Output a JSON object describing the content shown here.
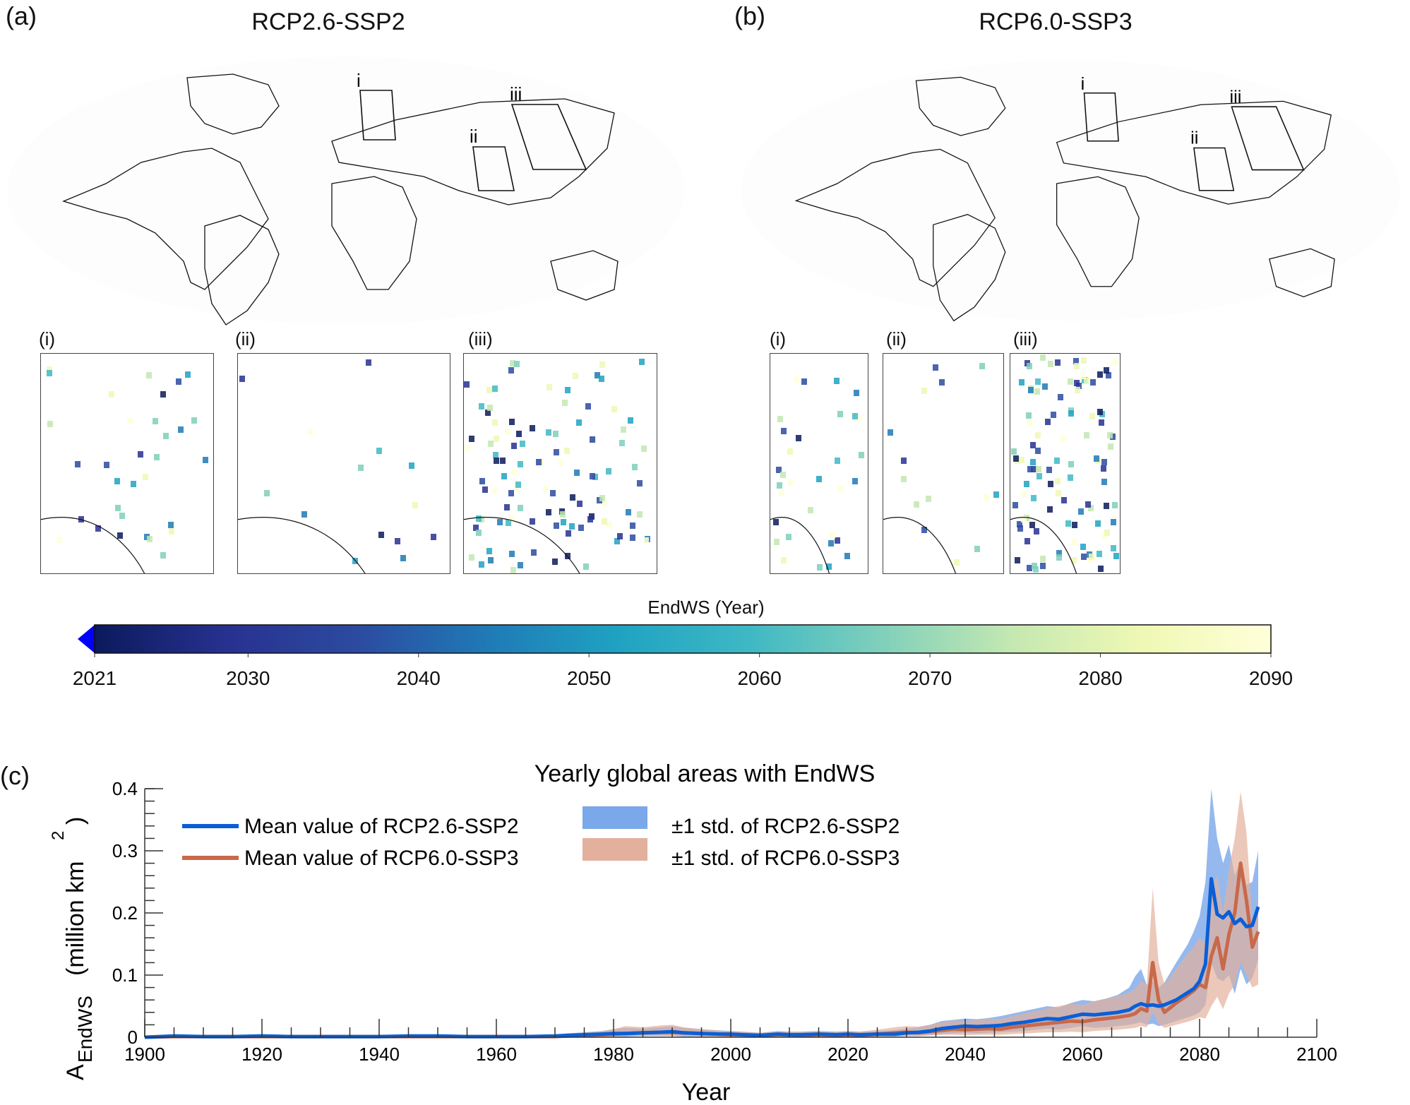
{
  "figure": {
    "panel_a": {
      "letter": "(a)",
      "title": "RCP2.6-SSP2",
      "region_labels": [
        "i",
        "ii",
        "iii"
      ],
      "insets": [
        {
          "label": "(i)"
        },
        {
          "label": "(ii)"
        },
        {
          "label": "(iii)"
        }
      ]
    },
    "panel_b": {
      "letter": "(b)",
      "title": "RCP6.0-SSP3",
      "region_labels": [
        "i",
        "ii",
        "iii"
      ],
      "insets": [
        {
          "label": "(i)"
        },
        {
          "label": "(ii)"
        },
        {
          "label": "(iii)"
        }
      ]
    },
    "colorbar": {
      "label": "EndWS (Year)",
      "ticks": [
        "2021",
        "2030",
        "2040",
        "2050",
        "2060",
        "2070",
        "2080",
        "2090"
      ],
      "range": [
        2021,
        2090
      ],
      "extend": "min",
      "colors": [
        "#0b1a5c",
        "#27318f",
        "#2c4aa0",
        "#1f7ab6",
        "#1fa2c2",
        "#3eb8c4",
        "#7fcfbb",
        "#c3e8b1",
        "#eff8b4",
        "#ffffd9"
      ],
      "extend_color": "#0000ff"
    },
    "panel_c": {
      "letter": "(c)"
    }
  },
  "chart_data": {
    "type": "line",
    "title": "Yearly global areas with EndWS",
    "xlabel": "Year",
    "ylabel": "A_EndWS (million km^2)",
    "ylabel_main": "A",
    "ylabel_sub": "EndWS",
    "ylabel_unit": "(million km",
    "ylabel_sup": "2",
    "ylabel_close": ")",
    "xlim": [
      1900,
      2100
    ],
    "ylim": [
      0,
      0.4
    ],
    "xticks": [
      1900,
      1920,
      1940,
      1960,
      1980,
      2000,
      2020,
      2040,
      2060,
      2080,
      2100
    ],
    "xtick_labels": [
      "1900",
      "1920",
      "1940",
      "1960",
      "1980",
      "2000",
      "2020",
      "2040",
      "2060",
      "2080",
      "2100"
    ],
    "yticks": [
      0,
      0.1,
      0.2,
      0.3,
      0.4
    ],
    "ytick_labels": [
      "0",
      "0.1",
      "0.2",
      "0.3",
      "0.4"
    ],
    "grid": false,
    "legend_position": "top-left",
    "legend": [
      {
        "label": "Mean value of RCP2.6-SSP2",
        "kind": "line",
        "color": "#0a5fd6"
      },
      {
        "label": "Mean value of RCP6.0-SSP3",
        "kind": "line",
        "color": "#c8694a"
      },
      {
        "label": "±1 std. of RCP2.6-SSP2",
        "kind": "band",
        "color": "#7ba8ea"
      },
      {
        "label": "±1 std. of RCP6.0-SSP3",
        "kind": "band",
        "color": "#e2b09c"
      }
    ],
    "x": [
      1900,
      1905,
      1910,
      1915,
      1920,
      1925,
      1930,
      1935,
      1940,
      1945,
      1950,
      1955,
      1960,
      1965,
      1970,
      1972,
      1975,
      1978,
      1980,
      1982,
      1985,
      1988,
      1990,
      1992,
      1995,
      1998,
      2000,
      2002,
      2005,
      2008,
      2010,
      2012,
      2015,
      2018,
      2020,
      2022,
      2025,
      2028,
      2030,
      2032,
      2034,
      2036,
      2038,
      2040,
      2042,
      2044,
      2046,
      2048,
      2050,
      2052,
      2054,
      2056,
      2058,
      2060,
      2062,
      2064,
      2066,
      2068,
      2069,
      2070,
      2071,
      2072,
      2073,
      2074,
      2076,
      2078,
      2079,
      2080,
      2081,
      2082,
      2083,
      2084,
      2085,
      2086,
      2087,
      2088,
      2089,
      2090
    ],
    "series": [
      {
        "name": "Mean value of RCP2.6-SSP2",
        "color": "#0a5fd6",
        "values": [
          0.0,
          0.002,
          0.001,
          0.001,
          0.002,
          0.001,
          0.001,
          0.001,
          0.001,
          0.002,
          0.002,
          0.001,
          0.001,
          0.001,
          0.002,
          0.003,
          0.004,
          0.005,
          0.006,
          0.006,
          0.007,
          0.008,
          0.009,
          0.007,
          0.006,
          0.005,
          0.005,
          0.004,
          0.003,
          0.005,
          0.004,
          0.004,
          0.005,
          0.004,
          0.005,
          0.004,
          0.005,
          0.005,
          0.007,
          0.008,
          0.01,
          0.014,
          0.016,
          0.018,
          0.017,
          0.018,
          0.019,
          0.022,
          0.024,
          0.027,
          0.03,
          0.029,
          0.033,
          0.037,
          0.036,
          0.038,
          0.04,
          0.044,
          0.05,
          0.054,
          0.051,
          0.052,
          0.05,
          0.052,
          0.06,
          0.072,
          0.078,
          0.09,
          0.118,
          0.255,
          0.198,
          0.192,
          0.202,
          0.183,
          0.19,
          0.178,
          0.18,
          0.21
        ],
        "lower": [
          0.0,
          0.0,
          0.0,
          0.0,
          0.0,
          0.0,
          0.0,
          0.0,
          0.0,
          0.0,
          0.0,
          0.0,
          0.0,
          0.0,
          0.0,
          0.0,
          0.001,
          0.001,
          0.001,
          0.001,
          0.002,
          0.002,
          0.002,
          0.001,
          0.001,
          0.001,
          0.001,
          0.001,
          0.0,
          0.001,
          0.001,
          0.001,
          0.001,
          0.001,
          0.001,
          0.001,
          0.001,
          0.001,
          0.002,
          0.002,
          0.003,
          0.005,
          0.006,
          0.007,
          0.006,
          0.007,
          0.008,
          0.009,
          0.01,
          0.012,
          0.014,
          0.012,
          0.015,
          0.018,
          0.015,
          0.016,
          0.018,
          0.02,
          0.022,
          0.024,
          0.02,
          0.022,
          0.018,
          0.02,
          0.026,
          0.032,
          0.035,
          0.04,
          0.052,
          0.12,
          0.095,
          0.09,
          0.1,
          0.07,
          0.11,
          0.085,
          0.095,
          0.125
        ],
        "upper": [
          0.001,
          0.004,
          0.003,
          0.003,
          0.005,
          0.003,
          0.003,
          0.003,
          0.003,
          0.004,
          0.004,
          0.003,
          0.003,
          0.003,
          0.004,
          0.006,
          0.008,
          0.01,
          0.013,
          0.015,
          0.014,
          0.016,
          0.018,
          0.015,
          0.013,
          0.011,
          0.01,
          0.009,
          0.007,
          0.01,
          0.009,
          0.009,
          0.01,
          0.009,
          0.01,
          0.009,
          0.01,
          0.011,
          0.014,
          0.016,
          0.02,
          0.026,
          0.028,
          0.03,
          0.029,
          0.031,
          0.034,
          0.038,
          0.042,
          0.046,
          0.05,
          0.048,
          0.055,
          0.06,
          0.058,
          0.062,
          0.068,
          0.08,
          0.098,
          0.11,
          0.084,
          0.09,
          0.08,
          0.088,
          0.12,
          0.15,
          0.17,
          0.195,
          0.25,
          0.4,
          0.32,
          0.28,
          0.31,
          0.26,
          0.285,
          0.245,
          0.25,
          0.3
        ]
      },
      {
        "name": "Mean value of RCP6.0-SSP3",
        "color": "#c8694a",
        "values": [
          0.0,
          0.001,
          0.001,
          0.001,
          0.001,
          0.001,
          0.001,
          0.001,
          0.001,
          0.001,
          0.001,
          0.001,
          0.001,
          0.001,
          0.001,
          0.002,
          0.003,
          0.004,
          0.005,
          0.006,
          0.007,
          0.008,
          0.008,
          0.007,
          0.006,
          0.005,
          0.004,
          0.004,
          0.003,
          0.004,
          0.004,
          0.003,
          0.004,
          0.003,
          0.004,
          0.003,
          0.005,
          0.007,
          0.008,
          0.007,
          0.009,
          0.011,
          0.013,
          0.012,
          0.013,
          0.014,
          0.013,
          0.016,
          0.018,
          0.02,
          0.022,
          0.024,
          0.026,
          0.025,
          0.028,
          0.03,
          0.032,
          0.035,
          0.038,
          0.046,
          0.042,
          0.12,
          0.06,
          0.04,
          0.055,
          0.068,
          0.075,
          0.085,
          0.08,
          0.13,
          0.16,
          0.11,
          0.165,
          0.2,
          0.28,
          0.22,
          0.145,
          0.17
        ],
        "lower": [
          0.0,
          0.0,
          0.0,
          0.0,
          0.0,
          0.0,
          0.0,
          0.0,
          0.0,
          0.0,
          0.0,
          0.0,
          0.0,
          0.0,
          0.0,
          0.0,
          0.001,
          0.001,
          0.001,
          0.002,
          0.002,
          0.002,
          0.002,
          0.002,
          0.001,
          0.001,
          0.001,
          0.001,
          0.0,
          0.001,
          0.001,
          0.0,
          0.001,
          0.0,
          0.001,
          0.0,
          0.001,
          0.002,
          0.002,
          0.002,
          0.003,
          0.004,
          0.004,
          0.003,
          0.004,
          0.004,
          0.004,
          0.005,
          0.006,
          0.007,
          0.008,
          0.008,
          0.009,
          0.008,
          0.01,
          0.011,
          0.012,
          0.014,
          0.015,
          0.018,
          0.016,
          0.04,
          0.022,
          0.015,
          0.02,
          0.025,
          0.028,
          0.032,
          0.03,
          0.05,
          0.065,
          0.045,
          0.07,
          0.085,
          0.12,
          0.1,
          0.08,
          0.085
        ],
        "upper": [
          0.001,
          0.003,
          0.002,
          0.002,
          0.003,
          0.002,
          0.002,
          0.002,
          0.002,
          0.003,
          0.003,
          0.002,
          0.002,
          0.002,
          0.003,
          0.005,
          0.007,
          0.01,
          0.013,
          0.018,
          0.016,
          0.019,
          0.02,
          0.016,
          0.013,
          0.011,
          0.009,
          0.009,
          0.007,
          0.009,
          0.009,
          0.008,
          0.009,
          0.008,
          0.01,
          0.009,
          0.012,
          0.016,
          0.018,
          0.017,
          0.02,
          0.024,
          0.027,
          0.026,
          0.028,
          0.03,
          0.029,
          0.034,
          0.038,
          0.042,
          0.046,
          0.05,
          0.054,
          0.052,
          0.058,
          0.062,
          0.066,
          0.072,
          0.078,
          0.09,
          0.085,
          0.24,
          0.12,
          0.085,
          0.11,
          0.135,
          0.145,
          0.16,
          0.15,
          0.24,
          0.26,
          0.2,
          0.27,
          0.32,
          0.395,
          0.33,
          0.19,
          0.22
        ]
      }
    ]
  }
}
